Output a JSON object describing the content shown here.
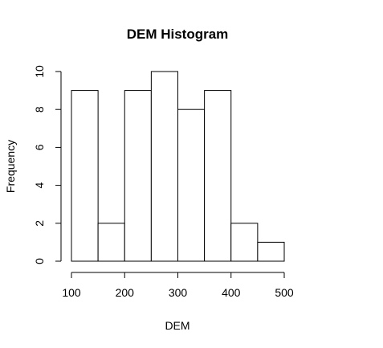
{
  "chart_data": {
    "type": "bar",
    "title": "DEM Histogram",
    "xlabel": "DEM",
    "ylabel": "Frequency",
    "bins": [
      {
        "start": 100,
        "end": 150,
        "count": 9
      },
      {
        "start": 150,
        "end": 200,
        "count": 2
      },
      {
        "start": 200,
        "end": 250,
        "count": 9
      },
      {
        "start": 250,
        "end": 300,
        "count": 10
      },
      {
        "start": 300,
        "end": 350,
        "count": 8
      },
      {
        "start": 350,
        "end": 400,
        "count": 9
      },
      {
        "start": 400,
        "end": 450,
        "count": 2
      },
      {
        "start": 450,
        "end": 500,
        "count": 1
      }
    ],
    "xlim": [
      100,
      500
    ],
    "ylim": [
      0,
      10
    ],
    "x_ticks": [
      100,
      200,
      300,
      400,
      500
    ],
    "y_ticks": [
      0,
      2,
      4,
      6,
      8,
      10
    ],
    "grid": false,
    "colors": {
      "bar_fill": "#ffffff",
      "bar_stroke": "#000000"
    }
  }
}
